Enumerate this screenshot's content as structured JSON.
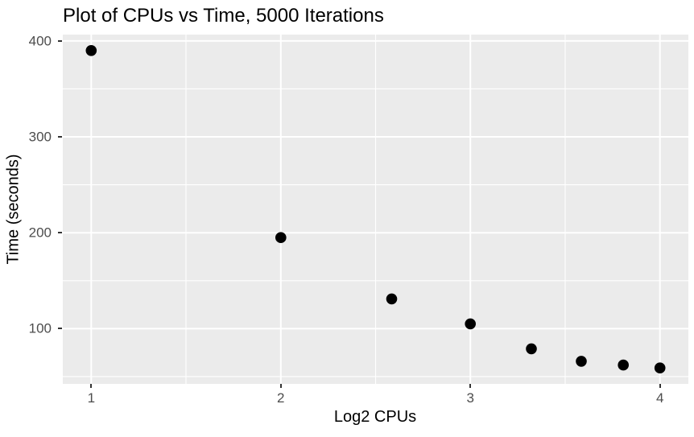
{
  "chart_data": {
    "type": "scatter",
    "title": "Plot of CPUs vs Time, 5000 Iterations",
    "xlabel": "Log2 CPUs",
    "ylabel": "Time (seconds)",
    "xlim": [
      0.85,
      4.15
    ],
    "ylim": [
      42.4,
      406.6
    ],
    "x_ticks": [
      1,
      2,
      3,
      4
    ],
    "y_ticks": [
      100,
      200,
      300,
      400
    ],
    "x_minor_gridlines": [
      1.5,
      2.5,
      3.5
    ],
    "y_minor_gridlines": [
      50,
      150,
      250,
      350
    ],
    "grid": true,
    "legend": "none",
    "points": [
      {
        "x": 1.0,
        "y": 390
      },
      {
        "x": 2.0,
        "y": 195
      },
      {
        "x": 2.585,
        "y": 131
      },
      {
        "x": 3.0,
        "y": 105
      },
      {
        "x": 3.322,
        "y": 79
      },
      {
        "x": 3.585,
        "y": 66
      },
      {
        "x": 3.807,
        "y": 62
      },
      {
        "x": 4.0,
        "y": 59
      }
    ],
    "colors": {
      "panel_background": "#EBEBEB",
      "gridline": "#FFFFFF",
      "point": "#000000",
      "tick_label": "#4D4D4D",
      "tick_mark": "#333333",
      "title_text": "#000000"
    }
  }
}
